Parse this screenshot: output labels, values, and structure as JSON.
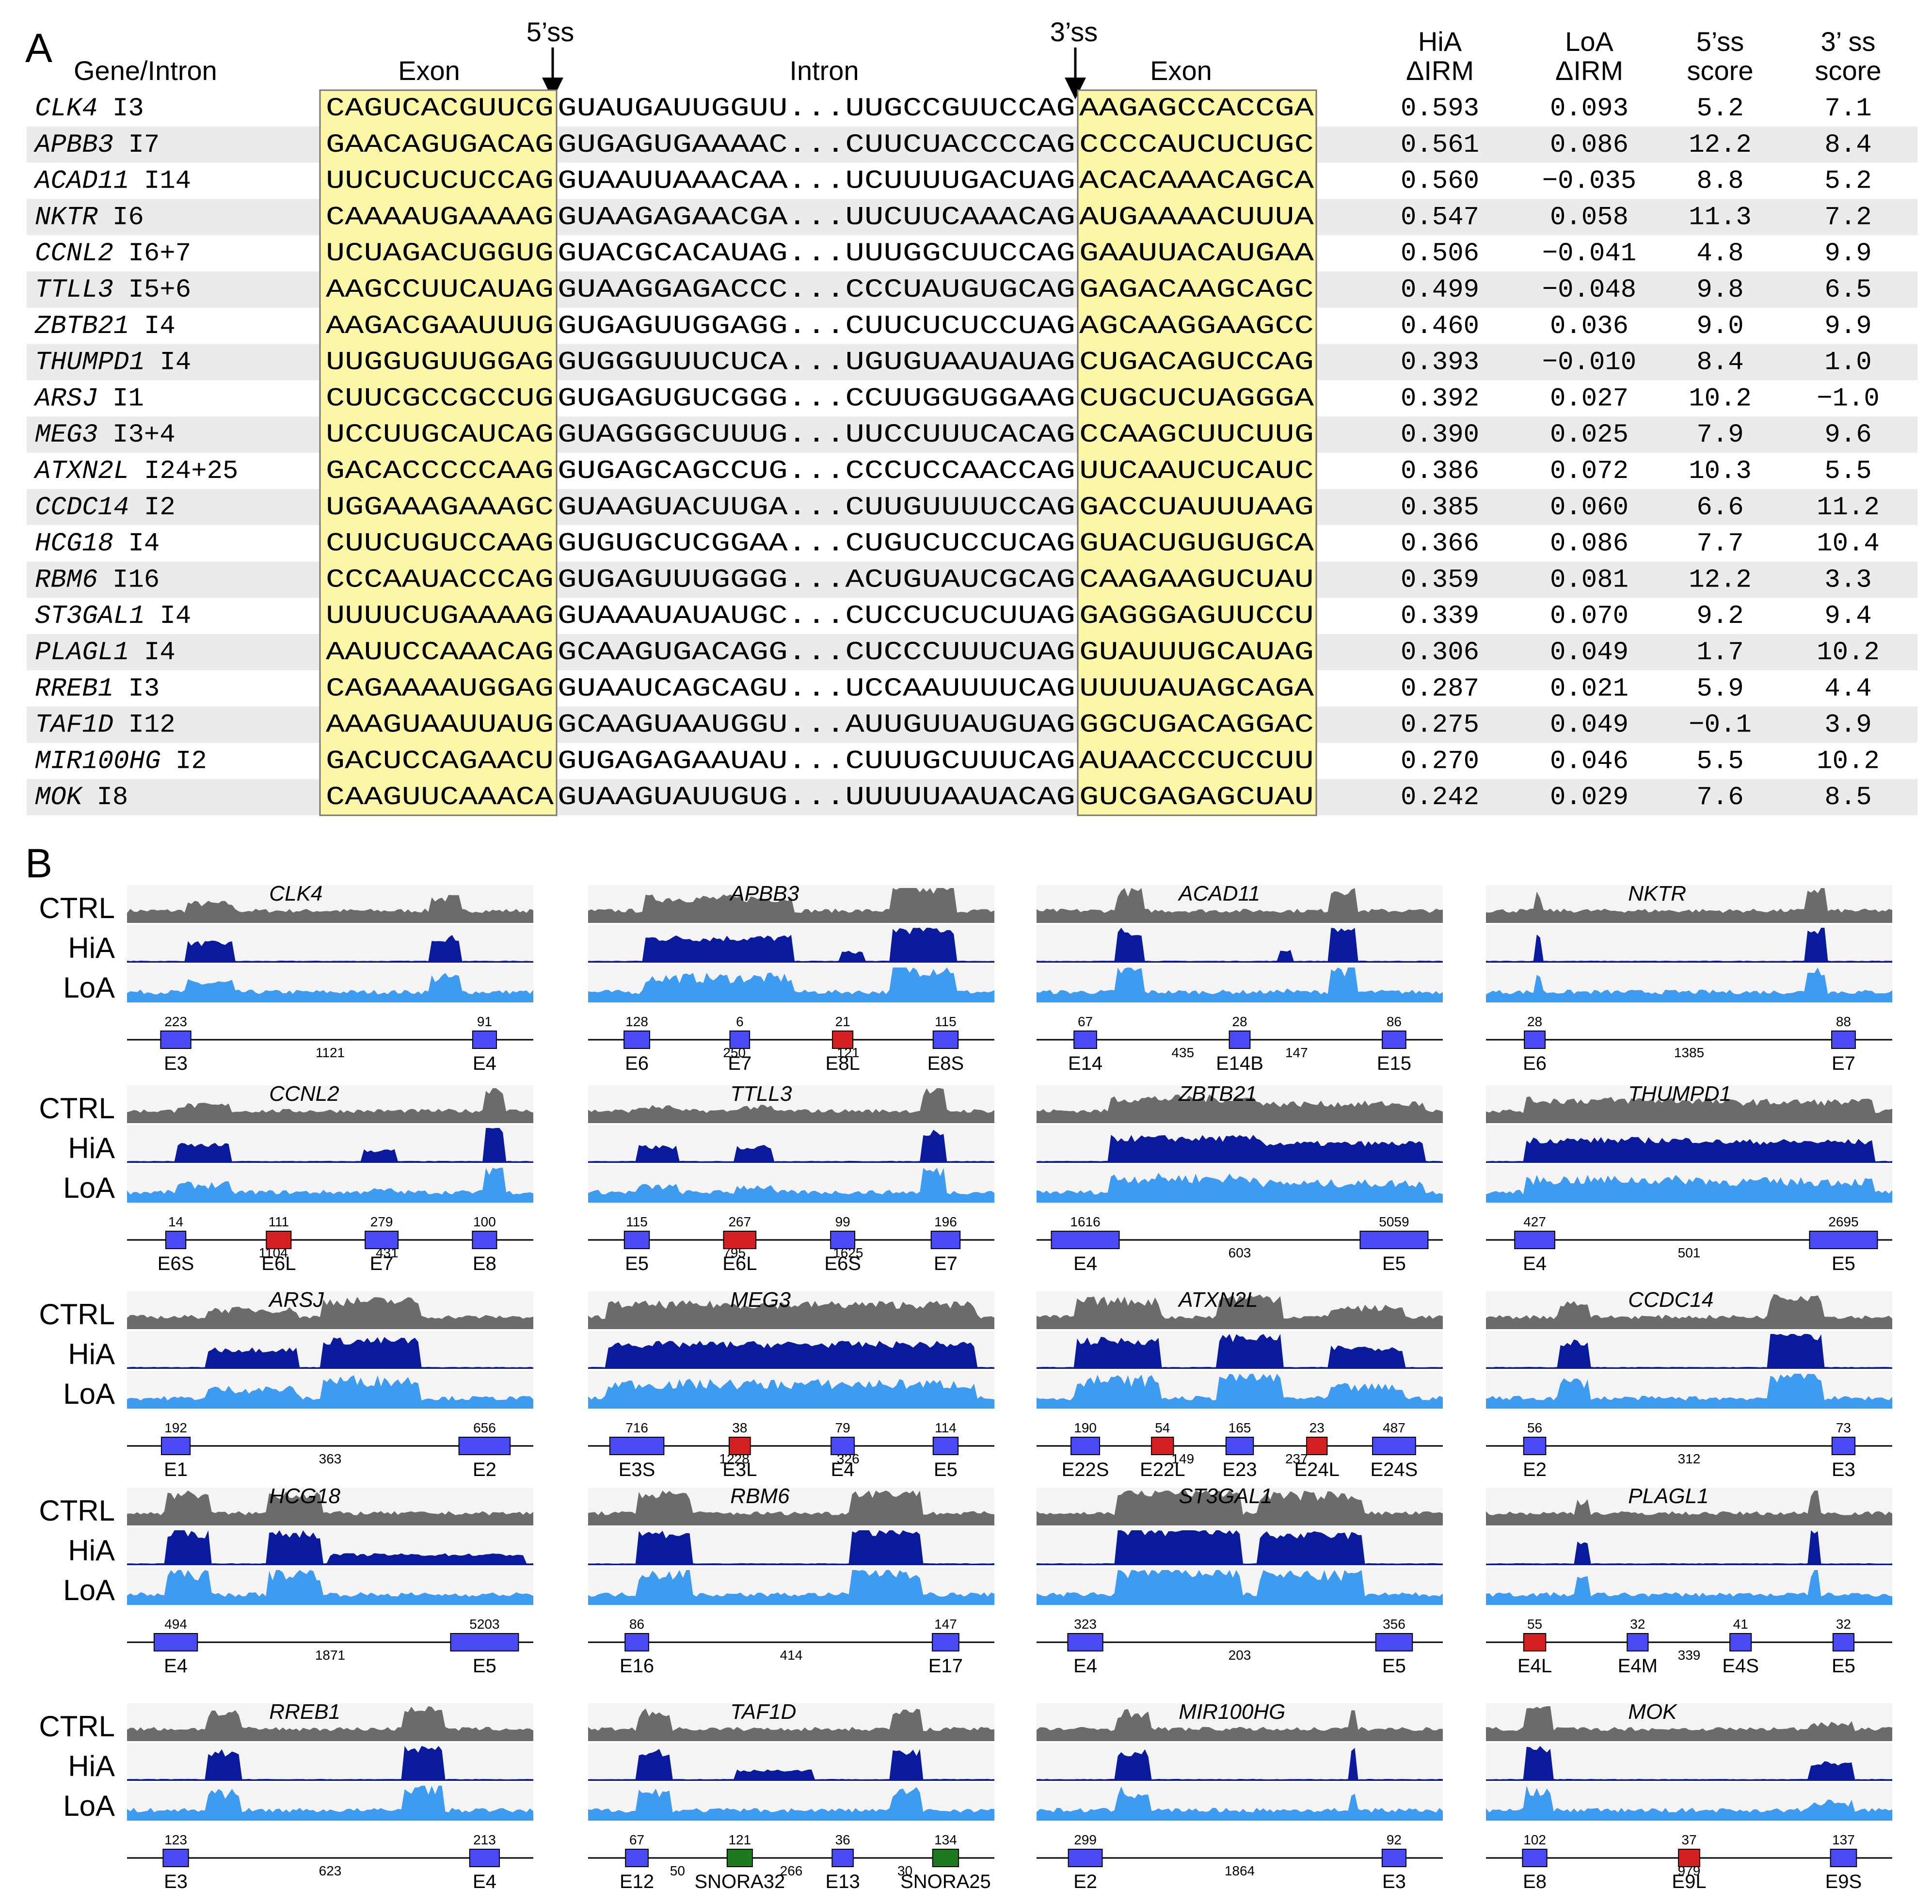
{
  "panels": {
    "a": "A",
    "b": "B"
  },
  "table": {
    "headers": {
      "gene_intron": "Gene/Intron",
      "exon_left": "Exon",
      "intron": "Intron",
      "exon_right": "Exon",
      "ss5_marker": "5’ss",
      "ss3_marker": "3’ss",
      "hia_1": "HiA",
      "hia_2": "ΔIRM",
      "loa_1": "LoA",
      "loa_2": "ΔIRM",
      "s5_1": "5’ss",
      "s5_2": "score",
      "s3_1": "3’ ss",
      "s3_2": "score"
    },
    "rows": [
      {
        "gene": "CLK4",
        "intron": "I3",
        "exon5": "CAGUCACGUUCG",
        "intron5": "GUAUGAUUGGUU",
        "intron3": "UUGCCGUUCCAG",
        "exon3": "AAGAGCCACCGA",
        "hia": "0.593",
        "loa": "0.093",
        "s5": "5.2",
        "s3": "7.1"
      },
      {
        "gene": "APBB3",
        "intron": "I7",
        "exon5": "GAACAGUGACAG",
        "intron5": "GUGAGUGAAAAC",
        "intron3": "CUUCUACCCCAG",
        "exon3": "CCCCAUCUCUGC",
        "hia": "0.561",
        "loa": "0.086",
        "s5": "12.2",
        "s3": "8.4"
      },
      {
        "gene": "ACAD11",
        "intron": "I14",
        "exon5": "UUCUCUCUCCAG",
        "intron5": "GUAAUUAAACAA",
        "intron3": "UCUUUUGACUAG",
        "exon3": "ACACAAACAGCA",
        "hia": "0.560",
        "loa": "−0.035",
        "s5": "8.8",
        "s3": "5.2"
      },
      {
        "gene": "NKTR",
        "intron": "I6",
        "exon5": "CAAAAUGAAAAG",
        "intron5": "GUAAGAGAACGA",
        "intron3": "UUCUUCAAACAG",
        "exon3": "AUGAAAACUUUA",
        "hia": "0.547",
        "loa": "0.058",
        "s5": "11.3",
        "s3": "7.2"
      },
      {
        "gene": "CCNL2",
        "intron": "I6+7",
        "exon5": "UCUAGACUGGUG",
        "intron5": "GUACGCACAUAG",
        "intron3": "UUUGGCUUCCAG",
        "exon3": "GAAUUACAUGAA",
        "hia": "0.506",
        "loa": "−0.041",
        "s5": "4.8",
        "s3": "9.9"
      },
      {
        "gene": "TTLL3",
        "intron": "I5+6",
        "exon5": "AAGCCUUCAUAG",
        "intron5": "GUAAGGAGACCC",
        "intron3": "CCCUAUGUGCAG",
        "exon3": "GAGACAAGCAGC",
        "hia": "0.499",
        "loa": "−0.048",
        "s5": "9.8",
        "s3": "6.5"
      },
      {
        "gene": "ZBTB21",
        "intron": "I4",
        "exon5": "AAGACGAAUUUG",
        "intron5": "GUGAGUUGGAGG",
        "intron3": "CUUCUCUCCUAG",
        "exon3": "AGCAAGGAAGCC",
        "hia": "0.460",
        "loa": "0.036",
        "s5": "9.0",
        "s3": "9.9"
      },
      {
        "gene": "THUMPD1",
        "intron": "I4",
        "exon5": "UUGGUGUUGGAG",
        "intron5": "GUGGGUUUCUCA",
        "intron3": "UGUGUAAUAUAG",
        "exon3": "CUGACAGUCCAG",
        "hia": "0.393",
        "loa": "−0.010",
        "s5": "8.4",
        "s3": "1.0"
      },
      {
        "gene": "ARSJ",
        "intron": "I1",
        "exon5": "CUUCGCCGCCUG",
        "intron5": "GUGAGUGUCGGG",
        "intron3": "CCUUGGUGGAAG",
        "exon3": "CUGCUCUAGGGA",
        "hia": "0.392",
        "loa": "0.027",
        "s5": "10.2",
        "s3": "−1.0"
      },
      {
        "gene": "MEG3",
        "intron": "I3+4",
        "exon5": "UCCUUGCAUCAG",
        "intron5": "GUAGGGGCUUUG",
        "intron3": "UUCCUUUCACAG",
        "exon3": "CCAAGCUUCUUG",
        "hia": "0.390",
        "loa": "0.025",
        "s5": "7.9",
        "s3": "9.6"
      },
      {
        "gene": "ATXN2L",
        "intron": "I24+25",
        "exon5": "GACACCCCCAAG",
        "intron5": "GUGAGCAGCCUG",
        "intron3": "CCCUCCAACCAG",
        "exon3": "UUCAAUCUCAUC",
        "hia": "0.386",
        "loa": "0.072",
        "s5": "10.3",
        "s3": "5.5"
      },
      {
        "gene": "CCDC14",
        "intron": "I2",
        "exon5": "UGGAAAGAAAGC",
        "intron5": "GUAAGUACUUGA",
        "intron3": "CUUGUUUUCCAG",
        "exon3": "GACCUAUUUAAG",
        "hia": "0.385",
        "loa": "0.060",
        "s5": "6.6",
        "s3": "11.2"
      },
      {
        "gene": "HCG18",
        "intron": "I4",
        "exon5": "CUUCUGUCCAAG",
        "intron5": "GUGUGCUCGGAA",
        "intron3": "CUGUCUCCUCAG",
        "exon3": "GUACUGUGUGCA",
        "hia": "0.366",
        "loa": "0.086",
        "s5": "7.7",
        "s3": "10.4"
      },
      {
        "gene": "RBM6",
        "intron": "I16",
        "exon5": "CCCAAUACCCAG",
        "intron5": "GUGAGUUUGGGG",
        "intron3": "ACUGUAUCGCAG",
        "exon3": "CAAGAAGUCUAU",
        "hia": "0.359",
        "loa": "0.081",
        "s5": "12.2",
        "s3": "3.3"
      },
      {
        "gene": "ST3GAL1",
        "intron": "I4",
        "exon5": "UUUUCUGAAAAG",
        "intron5": "GUAAAUAUAUGC",
        "intron3": "CUCCUCUCUUAG",
        "exon3": "GAGGGAGUUCCU",
        "hia": "0.339",
        "loa": "0.070",
        "s5": "9.2",
        "s3": "9.4"
      },
      {
        "gene": "PLAGL1",
        "intron": "I4",
        "exon5": "AAUUCCAAACAG",
        "intron5": "GCAAGUGACAGG",
        "intron3": "CUCCCUUUCUAG",
        "exon3": "GUAUUUGCAUAG",
        "hia": "0.306",
        "loa": "0.049",
        "s5": "1.7",
        "s3": "10.2"
      },
      {
        "gene": "RREB1",
        "intron": "I3",
        "exon5": "CAGAAAAUGGAG",
        "intron5": "GUAAUCAGCAGU",
        "intron3": "UCCAAUUUUCAG",
        "exon3": "UUUUAUAGCAGA",
        "hia": "0.287",
        "loa": "0.021",
        "s5": "5.9",
        "s3": "4.4"
      },
      {
        "gene": "TAF1D",
        "intron": "I12",
        "exon5": "AAAGUAAUUAUG",
        "intron5": "GCAAGUAAUGGU",
        "intron3": "AUUGUUAUGUAG",
        "exon3": "GGCUGACAGGAC",
        "hia": "0.275",
        "loa": "0.049",
        "s5": "−0.1",
        "s3": "3.9"
      },
      {
        "gene": "MIR100HG",
        "intron": "I2",
        "exon5": "GACUCCAGAACU",
        "intron5": "GUGAGAGAAUAU",
        "intron3": "CUUUGCUUUCAG",
        "exon3": "AUAACCCUCCUU",
        "hia": "0.270",
        "loa": "0.046",
        "s5": "5.5",
        "s3": "10.2"
      },
      {
        "gene": "MOK",
        "intron": "I8",
        "exon5": "CAAGUUCAAACA",
        "intron5": "GUAAGUAUUGUG",
        "intron3": "UUUUUAAUACAG",
        "exon3": "GUCGAGAGCUAU",
        "hia": "0.242",
        "loa": "0.029",
        "s5": "7.6",
        "s3": "8.5"
      }
    ]
  },
  "track_labels": {
    "ctrl": "CTRL",
    "hia": "HiA",
    "loa": "LoA"
  },
  "colors": {
    "ctrl": "#6b6b6b",
    "hia": "#0a1a9c",
    "loa": "#3d9bf0",
    "exon": "#4a4af5",
    "retained": "#d42020",
    "snorna": "#1e7a1e",
    "highlight": "#fbf7a6",
    "row_alt": "#ebebeb"
  },
  "genes": [
    {
      "title": "CLK4",
      "exons": [
        {
          "name": "E3",
          "len": "223"
        },
        {
          "name": "E4",
          "len": "91"
        }
      ],
      "introns": [
        "1121"
      ]
    },
    {
      "title": "APBB3",
      "exons": [
        {
          "name": "E6",
          "len": "128"
        },
        {
          "name": "E7",
          "len": "6"
        },
        {
          "name": "E8L",
          "len": "21"
        },
        {
          "name": "E8S",
          "len": "115"
        }
      ],
      "introns": [
        "250",
        "121"
      ]
    },
    {
      "title": "ACAD11",
      "exons": [
        {
          "name": "E14",
          "len": "67"
        },
        {
          "name": "E14B",
          "len": "28"
        },
        {
          "name": "E15",
          "len": "86"
        }
      ],
      "introns": [
        "435",
        "147"
      ]
    },
    {
      "title": "NKTR",
      "exons": [
        {
          "name": "E6",
          "len": "28"
        },
        {
          "name": "E7",
          "len": "88"
        }
      ],
      "introns": [
        "1385"
      ]
    },
    {
      "title": "CCNL2",
      "exons": [
        {
          "name": "E6S",
          "len": "14"
        },
        {
          "name": "E6L",
          "len": "111"
        },
        {
          "name": "E7",
          "len": "279"
        },
        {
          "name": "E8",
          "len": "100"
        }
      ],
      "introns": [
        "1104",
        "431"
      ]
    },
    {
      "title": "TTLL3",
      "exons": [
        {
          "name": "E5",
          "len": "115"
        },
        {
          "name": "E6L",
          "len": "267"
        },
        {
          "name": "E6S",
          "len": "99"
        },
        {
          "name": "E7",
          "len": "196"
        }
      ],
      "introns": [
        "795",
        "1625"
      ]
    },
    {
      "title": "ZBTB21",
      "exons": [
        {
          "name": "E4",
          "len": "1616"
        },
        {
          "name": "E5",
          "len": "5059"
        }
      ],
      "introns": [
        "603"
      ]
    },
    {
      "title": "THUMPD1",
      "exons": [
        {
          "name": "E4",
          "len": "427"
        },
        {
          "name": "E5",
          "len": "2695"
        }
      ],
      "introns": [
        "501"
      ]
    },
    {
      "title": "ARSJ",
      "exons": [
        {
          "name": "E1",
          "len": "192"
        },
        {
          "name": "E2",
          "len": "656"
        }
      ],
      "introns": [
        "363"
      ]
    },
    {
      "title": "MEG3",
      "exons": [
        {
          "name": "E3S",
          "len": "716"
        },
        {
          "name": "E3L",
          "len": "38"
        },
        {
          "name": "E4",
          "len": "79"
        },
        {
          "name": "E5",
          "len": "114"
        }
      ],
      "introns": [
        "1228",
        "326"
      ]
    },
    {
      "title": "ATXN2L",
      "exons": [
        {
          "name": "E22S",
          "len": "190"
        },
        {
          "name": "E22L",
          "len": "54"
        },
        {
          "name": "E23",
          "len": "165"
        },
        {
          "name": "E24L",
          "len": "23"
        },
        {
          "name": "E24S",
          "len": "487"
        }
      ],
      "introns": [
        "149",
        "237"
      ]
    },
    {
      "title": "CCDC14",
      "exons": [
        {
          "name": "E2",
          "len": "56"
        },
        {
          "name": "E3",
          "len": "73"
        }
      ],
      "introns": [
        "312"
      ]
    },
    {
      "title": "HCG18",
      "exons": [
        {
          "name": "E4",
          "len": "494"
        },
        {
          "name": "E5",
          "len": "5203"
        }
      ],
      "introns": [
        "1871"
      ]
    },
    {
      "title": "RBM6",
      "exons": [
        {
          "name": "E16",
          "len": "86"
        },
        {
          "name": "E17",
          "len": "147"
        }
      ],
      "introns": [
        "414"
      ]
    },
    {
      "title": "ST3GAL1",
      "exons": [
        {
          "name": "E4",
          "len": "323"
        },
        {
          "name": "E5",
          "len": "356"
        }
      ],
      "introns": [
        "203"
      ]
    },
    {
      "title": "PLAGL1",
      "exons": [
        {
          "name": "E4L",
          "len": "55"
        },
        {
          "name": "E4M",
          "len": "32"
        },
        {
          "name": "E4S",
          "len": "41"
        },
        {
          "name": "E5",
          "len": "32"
        }
      ],
      "introns": [
        "339"
      ]
    },
    {
      "title": "RREB1",
      "exons": [
        {
          "name": "E3",
          "len": "123"
        },
        {
          "name": "E4",
          "len": "213"
        }
      ],
      "introns": [
        "623"
      ]
    },
    {
      "title": "TAF1D",
      "exons": [
        {
          "name": "E12",
          "len": "67"
        },
        {
          "name": "SNORA32",
          "len": "121"
        },
        {
          "name": "E13",
          "len": "36"
        },
        {
          "name": "SNORA25",
          "len": "134"
        }
      ],
      "introns": [
        "50",
        "266",
        "30"
      ]
    },
    {
      "title": "MIR100HG",
      "exons": [
        {
          "name": "E2",
          "len": "299"
        },
        {
          "name": "E3",
          "len": "92"
        }
      ],
      "introns": [
        "1864"
      ]
    },
    {
      "title": "MOK",
      "exons": [
        {
          "name": "E8",
          "len": "102"
        },
        {
          "name": "E9L",
          "len": "37"
        },
        {
          "name": "E9S",
          "len": "137"
        }
      ],
      "introns": [
        "979"
      ]
    }
  ]
}
